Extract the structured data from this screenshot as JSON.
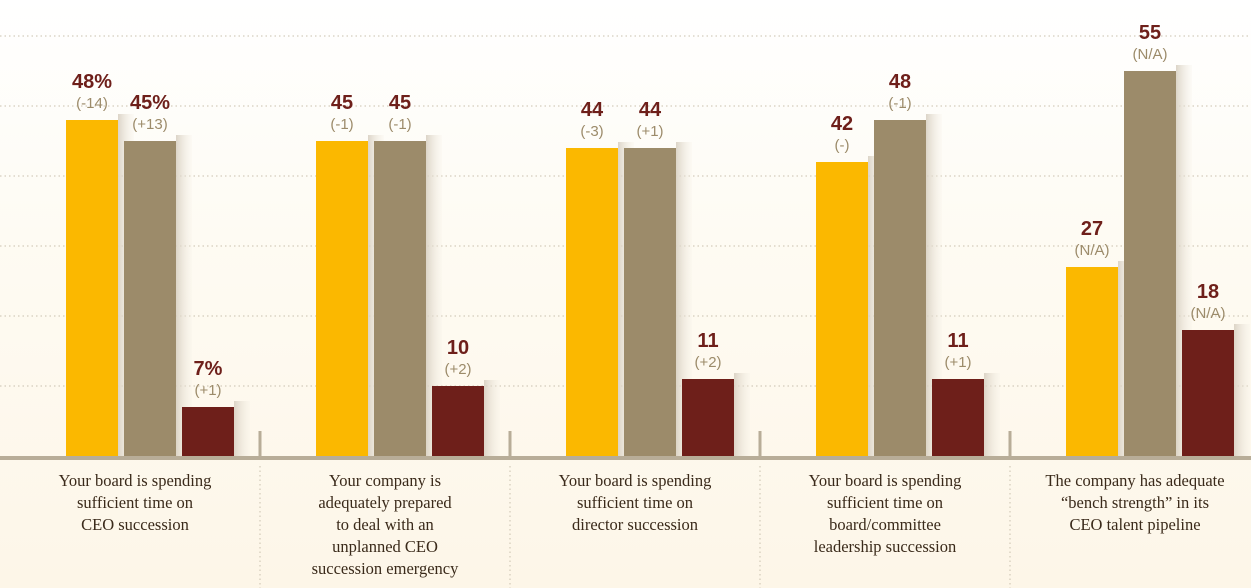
{
  "colors": {
    "series_a": "#fbb800",
    "series_b": "#9c8b6a",
    "series_c": "#6e1f1a",
    "value_label": "#6e1f1a",
    "change_label": "#9c8b6a",
    "gridline": "#c9c0ad",
    "baseline": "#b8ad98"
  },
  "chart_data": {
    "type": "bar",
    "title": "",
    "xlabel": "",
    "ylabel": "",
    "ylim": [
      0,
      60
    ],
    "grid": true,
    "legend": "none",
    "groups": [
      {
        "category_lines": [
          "Your board is spending",
          "sufficient time on",
          "CEO succession"
        ],
        "bars": [
          {
            "value": 48,
            "label": "48%",
            "change": "(-14)"
          },
          {
            "value": 45,
            "label": "45%",
            "change": "(+13)"
          },
          {
            "value": 7,
            "label": "7%",
            "change": "(+1)"
          }
        ]
      },
      {
        "category_lines": [
          "Your company is",
          "adequately prepared",
          "to deal with an",
          "unplanned CEO",
          "succession emergency"
        ],
        "bars": [
          {
            "value": 45,
            "label": "45",
            "change": "(-1)"
          },
          {
            "value": 45,
            "label": "45",
            "change": "(-1)"
          },
          {
            "value": 10,
            "label": "10",
            "change": "(+2)"
          }
        ]
      },
      {
        "category_lines": [
          "Your board is spending",
          "sufficient time on",
          "director succession"
        ],
        "bars": [
          {
            "value": 44,
            "label": "44",
            "change": "(-3)"
          },
          {
            "value": 44,
            "label": "44",
            "change": "(+1)"
          },
          {
            "value": 11,
            "label": "11",
            "change": "(+2)"
          }
        ]
      },
      {
        "category_lines": [
          "Your board is spending",
          "sufficient time on",
          "board/committee",
          "leadership succession"
        ],
        "bars": [
          {
            "value": 42,
            "label": "42",
            "change": "(-)"
          },
          {
            "value": 48,
            "label": "48",
            "change": "(-1)"
          },
          {
            "value": 11,
            "label": "11",
            "change": "(+1)"
          }
        ]
      },
      {
        "category_lines": [
          "The company has adequate",
          "“bench strength” in its",
          "CEO talent pipeline"
        ],
        "bars": [
          {
            "value": 27,
            "label": "27",
            "change": "(N/A)"
          },
          {
            "value": 55,
            "label": "55",
            "change": "(N/A)"
          },
          {
            "value": 18,
            "label": "18",
            "change": "(N/A)"
          }
        ]
      }
    ]
  }
}
